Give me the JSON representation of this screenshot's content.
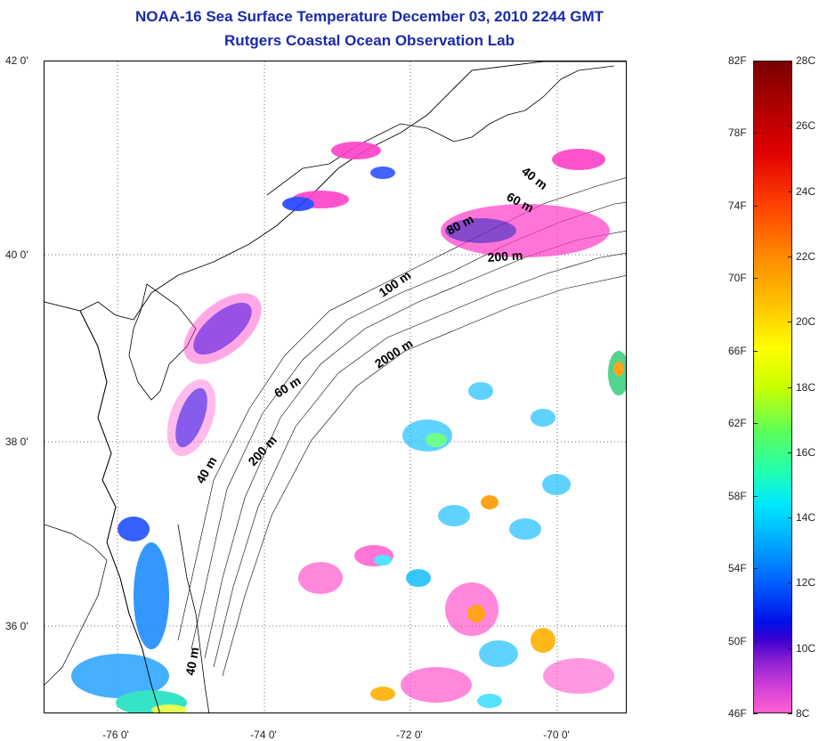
{
  "title": {
    "line1": "NOAA-16 Sea Surface Temperature December 03, 2010 2244 GMT",
    "line2": "Rutgers Coastal Ocean Observation Lab"
  },
  "map": {
    "lat_ticks": [
      "42 0'",
      "40 0'",
      "38 0'",
      "36 0'"
    ],
    "lon_ticks": [
      "-76 0'",
      "-74 0'",
      "-72 0'",
      "-70 0'"
    ],
    "contour_labels": [
      "40 m",
      "60 m",
      "80 m",
      "200 m",
      "100 m",
      "2000 m",
      "60 m",
      "40 m",
      "200 m",
      "40 m"
    ],
    "grid": "dotted",
    "colors": {
      "title": "#1a2aa8",
      "land": "#ffffff",
      "coastline": "#000000"
    }
  },
  "colorbar": {
    "fahrenheit_labels": [
      "82F",
      "78F",
      "74F",
      "70F",
      "66F",
      "62F",
      "58F",
      "54F",
      "50F",
      "46F"
    ],
    "celsius_labels": [
      "28C",
      "26C",
      "24C",
      "22C",
      "20C",
      "18C",
      "16C",
      "14C",
      "12C",
      "10C",
      "8C"
    ],
    "min_c": 8,
    "max_c": 28,
    "min_f": 46,
    "max_f": 82
  }
}
